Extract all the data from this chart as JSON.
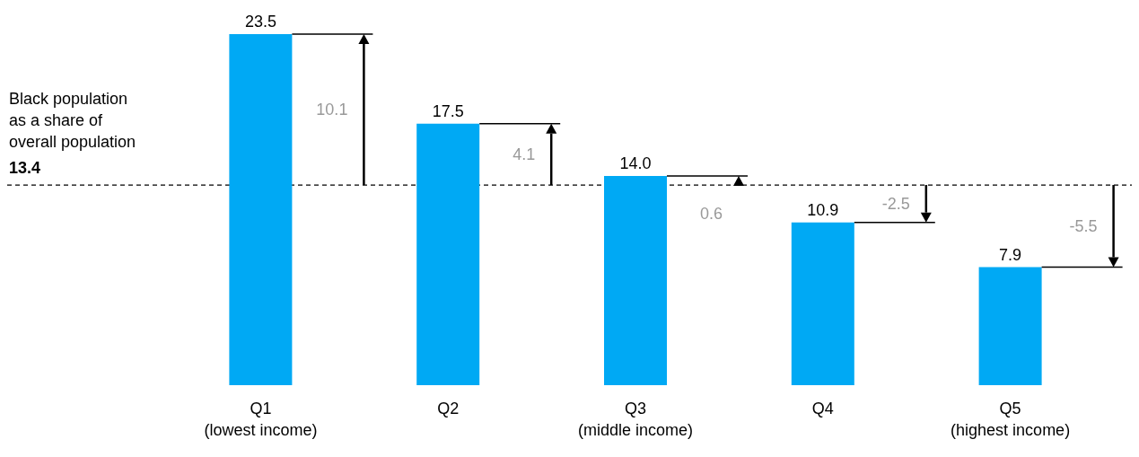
{
  "chart_data": {
    "type": "bar",
    "categories": [
      "Q1\n(lowest income)",
      "Q2",
      "Q3\n(middle income)",
      "Q4",
      "Q5\n(highest income)"
    ],
    "values": [
      23.5,
      17.5,
      14.0,
      10.9,
      7.9
    ],
    "value_labels": [
      "23.5",
      "17.5",
      "14.0",
      "10.9",
      "7.9"
    ],
    "color": "#00a9f4",
    "ref_lines": [
      {
        "axis": "y",
        "value": 13.4,
        "label": "Black population\nas a share of\noverall population",
        "line_style": "dashed",
        "color": "#000000"
      }
    ],
    "annotations": [
      "10.1",
      "4.1",
      "0.6",
      "-2.5",
      "-5.5",
      {
        "text": "13.4",
        "y": 13.4
      }
    ],
    "grid": false
  }
}
